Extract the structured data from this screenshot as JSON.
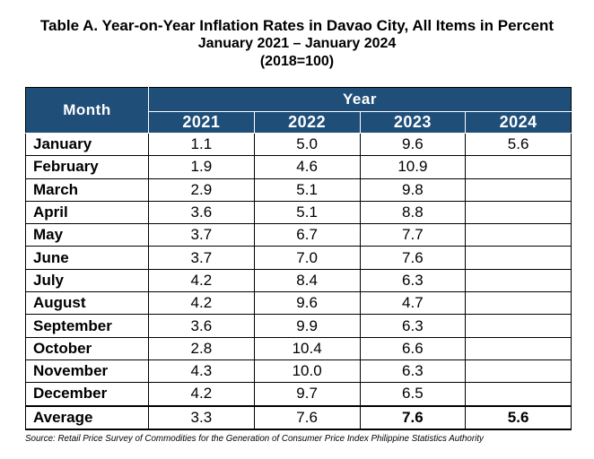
{
  "title": {
    "line1": "Table A. Year-on-Year Inflation Rates in Davao City, All Items in Percent",
    "line2": "January 2021 – January 2024",
    "line3": "(2018=100)"
  },
  "headers": {
    "month": "Month",
    "year": "Year",
    "years": [
      "2021",
      "2022",
      "2023",
      "2024"
    ]
  },
  "rows": [
    {
      "month": "January",
      "v": [
        "1.1",
        "5.0",
        "9.6",
        "5.6"
      ]
    },
    {
      "month": "February",
      "v": [
        "1.9",
        "4.6",
        "10.9",
        ""
      ]
    },
    {
      "month": "March",
      "v": [
        "2.9",
        "5.1",
        "9.8",
        ""
      ]
    },
    {
      "month": "April",
      "v": [
        "3.6",
        "5.1",
        "8.8",
        ""
      ]
    },
    {
      "month": "May",
      "v": [
        "3.7",
        "6.7",
        "7.7",
        ""
      ]
    },
    {
      "month": "June",
      "v": [
        "3.7",
        "7.0",
        "7.6",
        ""
      ]
    },
    {
      "month": "July",
      "v": [
        "4.2",
        "8.4",
        "6.3",
        ""
      ]
    },
    {
      "month": "August",
      "v": [
        "4.2",
        "9.6",
        "4.7",
        ""
      ]
    },
    {
      "month": "September",
      "v": [
        "3.6",
        "9.9",
        "6.3",
        ""
      ]
    },
    {
      "month": "October",
      "v": [
        "2.8",
        "10.4",
        "6.6",
        ""
      ]
    },
    {
      "month": "November",
      "v": [
        "4.3",
        "10.0",
        "6.3",
        ""
      ]
    },
    {
      "month": "December",
      "v": [
        "4.2",
        "9.7",
        "6.5",
        ""
      ]
    }
  ],
  "average": {
    "label": "Average",
    "v": [
      "3.3",
      "7.6",
      "7.6",
      "5.6"
    ]
  },
  "source": "Source: Retail Price Survey of Commodities for the Generation of Consumer Price Index Philippine Statistics Authority",
  "colors": {
    "header_bg": "#1f4e79",
    "header_text": "#ffffff"
  }
}
